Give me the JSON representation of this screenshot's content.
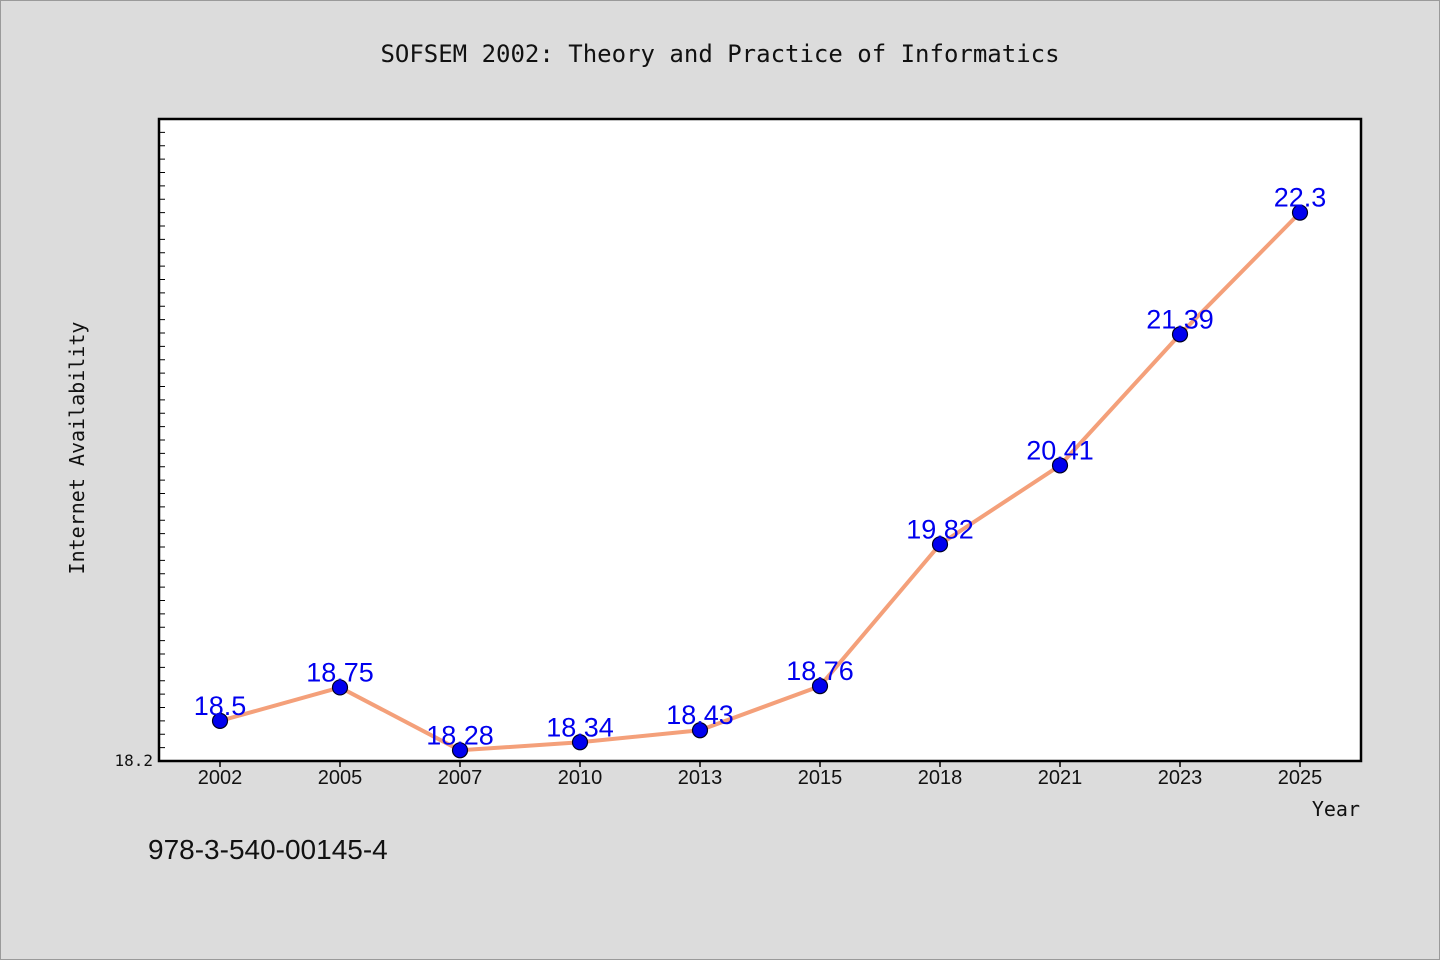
{
  "chart_data": {
    "type": "line",
    "title": "SOFSEM 2002: Theory and Practice of Informatics",
    "xlabel": "Year",
    "ylabel": "Internet Availability",
    "categories": [
      "2002",
      "2005",
      "2007",
      "2010",
      "2013",
      "2015",
      "2018",
      "2021",
      "2023",
      "2025"
    ],
    "values": [
      18.5,
      18.75,
      18.28,
      18.34,
      18.43,
      18.76,
      19.82,
      20.41,
      21.39,
      22.3
    ],
    "value_labels": [
      "18.5",
      "18.75",
      "18.28",
      "18.34",
      "18.43",
      "18.76",
      "19.82",
      "20.41",
      "21.39",
      "22.3"
    ],
    "ylim": [
      18.2,
      23.0
    ],
    "y_tick_labels": [
      "18.2"
    ],
    "grid": false,
    "line_color": "#f4a07a",
    "marker_color": "#0000ee",
    "label_color": "#0000ee"
  },
  "footer": {
    "isbn": "978-3-540-00145-4"
  }
}
